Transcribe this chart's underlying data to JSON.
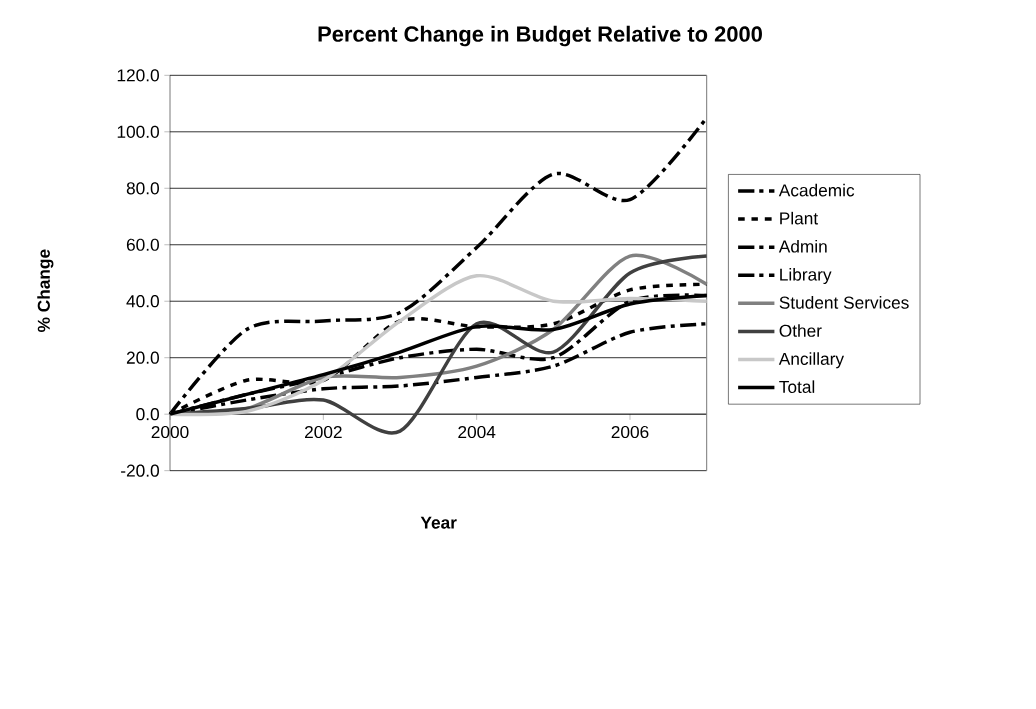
{
  "chart_data": {
    "type": "line",
    "title": "Percent Change in Budget Relative to 2000",
    "xlabel": "Year",
    "ylabel": "% Change",
    "x": [
      2000,
      2001,
      2002,
      2003,
      2004,
      2005,
      2006,
      2007
    ],
    "series": [
      {
        "name": "Academic",
        "color": "#000000",
        "line_style": "dashed",
        "values": [
          0,
          5,
          9,
          10,
          13,
          17,
          29,
          32
        ]
      },
      {
        "name": "Plant",
        "color": "#000000",
        "line_style": "dotted",
        "values": [
          0,
          12,
          12,
          33,
          31,
          32,
          44,
          46
        ]
      },
      {
        "name": "Admin",
        "color": "#000000",
        "line_style": "dashed",
        "values": [
          0,
          30,
          33,
          36,
          59,
          85,
          76,
          105
        ]
      },
      {
        "name": "Library",
        "color": "#000000",
        "line_style": "dashed",
        "values": [
          0,
          7,
          13,
          20,
          23,
          20,
          40,
          42
        ]
      },
      {
        "name": "Student Services",
        "color": "#808080",
        "line_style": "solid",
        "values": [
          0,
          2,
          13,
          13,
          17,
          30,
          56,
          46
        ]
      },
      {
        "name": "Other",
        "color": "#404040",
        "line_style": "solid",
        "values": [
          0,
          2,
          5,
          -6,
          32,
          22,
          50,
          56
        ]
      },
      {
        "name": "Ancillary",
        "color": "#c8c8c8",
        "line_style": "solid",
        "values": [
          0,
          1,
          12,
          33,
          49,
          40,
          41,
          40
        ]
      },
      {
        "name": "Total",
        "color": "#000000",
        "line_style": "solid",
        "values": [
          0,
          7,
          14,
          22,
          31,
          30,
          39,
          42
        ]
      }
    ],
    "xlim": [
      2000,
      2007
    ],
    "ylim": [
      -20,
      120
    ],
    "xticks": [
      2000,
      2002,
      2004,
      2006
    ],
    "yticks": [
      {
        "value": -20,
        "label": "-20.0"
      },
      {
        "value": 0,
        "label": "0.0"
      },
      {
        "value": 20,
        "label": "20.0"
      },
      {
        "value": 40,
        "label": "40.0"
      },
      {
        "value": 60,
        "label": "60.0"
      },
      {
        "value": 80,
        "label": "80.0"
      },
      {
        "value": 100,
        "label": "100.0"
      },
      {
        "value": 120,
        "label": "120.0"
      }
    ],
    "grid": "y",
    "legend": "right"
  }
}
